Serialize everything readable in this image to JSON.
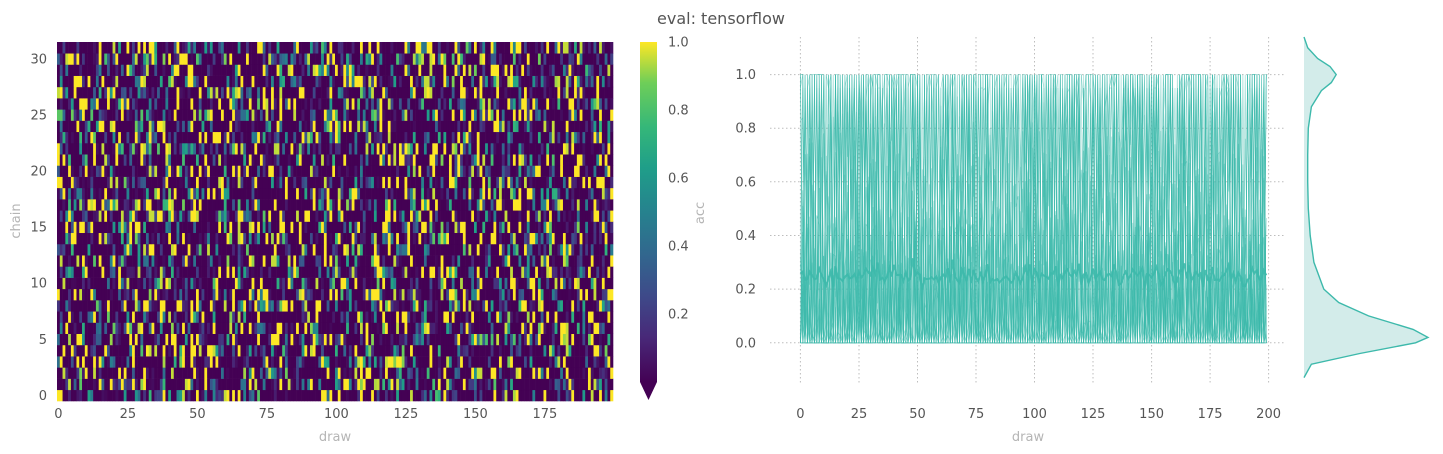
{
  "title": "eval: tensorflow",
  "chart_data": [
    {
      "type": "heatmap",
      "xlabel": "draw",
      "ylabel": "chain",
      "x_ticks": [
        "0",
        "25",
        "50",
        "75",
        "100",
        "125",
        "150",
        "175"
      ],
      "y_ticks": [
        "0",
        "5",
        "10",
        "15",
        "20",
        "25",
        "30"
      ],
      "n_draws": 200,
      "n_chains": 32,
      "colormap": "viridis",
      "colorbar": {
        "label": "acc",
        "ticks": [
          "0.2",
          "0.4",
          "0.6",
          "0.8",
          "1.0"
        ],
        "range": [
          0,
          1
        ],
        "extend": "min"
      },
      "cell_value_distribution": {
        "mean": 0.25,
        "share_near_one": 0.12
      }
    },
    {
      "type": "line",
      "xlabel": "draw",
      "ylabel": "",
      "x_ticks": [
        "0",
        "25",
        "50",
        "75",
        "100",
        "125",
        "150",
        "175",
        "200"
      ],
      "y_ticks": [
        "0.0",
        "0.2",
        "0.4",
        "0.6",
        "0.8",
        "1.0"
      ],
      "xlim": [
        -13,
        207
      ],
      "ylim": [
        -0.15,
        1.14
      ],
      "n_traces": 32,
      "trace_range": [
        0,
        1
      ],
      "mean_level": 0.25,
      "color": "#3db9ab",
      "grid": true
    },
    {
      "type": "area",
      "xlabel": "",
      "ylabel": "",
      "orientation": "vertical",
      "density_y": [
        -0.13,
        -0.08,
        -0.04,
        0.0,
        0.02,
        0.05,
        0.1,
        0.15,
        0.2,
        0.3,
        0.4,
        0.5,
        0.6,
        0.7,
        0.8,
        0.88,
        0.94,
        0.97,
        1.0,
        1.03,
        1.06,
        1.1,
        1.14
      ],
      "density_values": [
        0.0,
        0.06,
        0.45,
        0.9,
        1.0,
        0.88,
        0.52,
        0.28,
        0.16,
        0.08,
        0.05,
        0.035,
        0.03,
        0.03,
        0.035,
        0.06,
        0.14,
        0.22,
        0.26,
        0.21,
        0.11,
        0.03,
        0.0
      ],
      "fill_color": "#d3ecea",
      "line_color": "#3db9ab"
    }
  ]
}
